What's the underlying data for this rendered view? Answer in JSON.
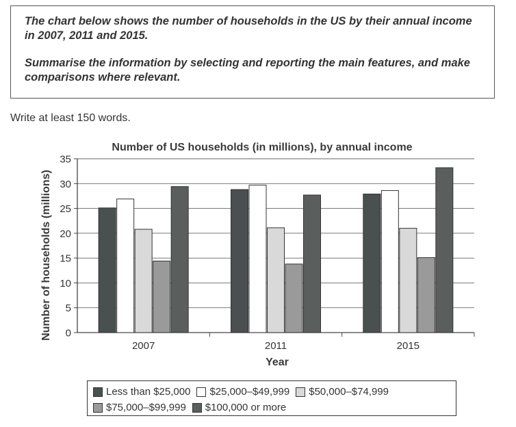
{
  "prompt": {
    "line1": "The chart below shows the number of households in the US by their annual income in 2007, 2011 and 2015.",
    "line2": "Summarise the information by selecting and reporting the main features, and make comparisons where relevant."
  },
  "instruction": "Write at least 150 words.",
  "chart_data": {
    "type": "bar",
    "title": "Number of US households (in millions), by annual income",
    "xlabel": "Year",
    "ylabel": "Number of households (millions)",
    "categories": [
      "2007",
      "2011",
      "2015"
    ],
    "ylim": [
      0,
      35
    ],
    "yticks": [
      0,
      5,
      10,
      15,
      20,
      25,
      30,
      35
    ],
    "grid": true,
    "legend_position": "bottom",
    "series": [
      {
        "name": "Less than $25,000",
        "color": "#4a4f4f",
        "values": [
          25.1,
          28.8,
          27.9
        ]
      },
      {
        "name": "$25,000–$49,999",
        "color": "#ffffff",
        "values": [
          26.9,
          29.7,
          28.6
        ]
      },
      {
        "name": "$50,000–$74,999",
        "color": "#d9d9d9",
        "values": [
          20.8,
          21.1,
          21.0
        ]
      },
      {
        "name": "$75,000–$99,999",
        "color": "#9a9a9a",
        "values": [
          14.4,
          13.8,
          15.1
        ]
      },
      {
        "name": "$100,000 or more",
        "color": "#5a5f5e",
        "values": [
          29.4,
          27.7,
          33.2
        ]
      }
    ]
  }
}
